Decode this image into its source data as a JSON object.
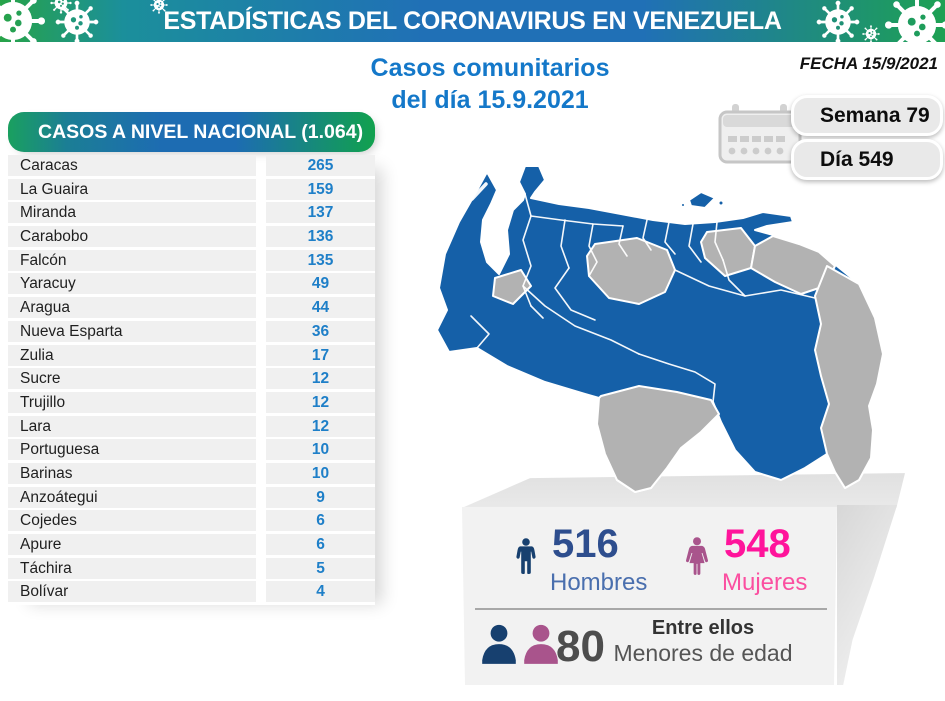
{
  "banner": {
    "title": "ESTADÍSTICAS DEL CORONAVIRUS EN VENEZUELA"
  },
  "header": {
    "date_label": "FECHA 15/9/2021",
    "title_line1": "Casos comunitarios",
    "title_line2": "del día 15.9.2021",
    "week_badge": "Semana 79",
    "day_badge": "Día 549"
  },
  "table": {
    "header": "CASOS A NIVEL NACIONAL (1.064)",
    "rows": [
      {
        "state": "Caracas",
        "value": "265"
      },
      {
        "state": "La Guaira",
        "value": "159"
      },
      {
        "state": "Miranda",
        "value": "137"
      },
      {
        "state": "Carabobo",
        "value": "136"
      },
      {
        "state": "Falcón",
        "value": "135"
      },
      {
        "state": "Yaracuy",
        "value": "49"
      },
      {
        "state": "Aragua",
        "value": "44"
      },
      {
        "state": "Nueva Esparta",
        "value": "36"
      },
      {
        "state": "Zulia",
        "value": "17"
      },
      {
        "state": "Sucre",
        "value": "12"
      },
      {
        "state": "Trujillo",
        "value": "12"
      },
      {
        "state": "Lara",
        "value": "12"
      },
      {
        "state": "Portuguesa",
        "value": "10"
      },
      {
        "state": "Barinas",
        "value": "10"
      },
      {
        "state": "Anzoátegui",
        "value": "9"
      },
      {
        "state": "Cojedes",
        "value": "6"
      },
      {
        "state": "Apure",
        "value": "6"
      },
      {
        "state": "Táchira",
        "value": "5"
      },
      {
        "state": "Bolívar",
        "value": "4"
      }
    ]
  },
  "stats": {
    "men": {
      "value": "516",
      "label": "Hombres"
    },
    "women": {
      "value": "548",
      "label": "Mujeres"
    },
    "minors": {
      "value": "80",
      "line1": "Entre ellos",
      "line2": "Menores de edad"
    }
  },
  "colors": {
    "accent_blue": "#1478c9",
    "table_value_blue": "#1e7fc8",
    "map_blue": "#1560a8",
    "map_gray": "#b2b2b2",
    "men_icon": "#17406f",
    "men_number": "#2e4e8e",
    "men_label": "#4a6fae",
    "women_icon": "#a9548c",
    "women_number": "#ff149b",
    "women_label": "#fb4fa0",
    "minors_number": "#4d4d4d"
  },
  "chart_data": {
    "type": "table",
    "title": "CASOS A NIVEL NACIONAL (1.064)",
    "subtitle": "Casos comunitarios del día 15.9.2021",
    "date": "15/9/2021",
    "week": 79,
    "day": 549,
    "total_cases": 1064,
    "categories": [
      "Caracas",
      "La Guaira",
      "Miranda",
      "Carabobo",
      "Falcón",
      "Yaracuy",
      "Aragua",
      "Nueva Esparta",
      "Zulia",
      "Sucre",
      "Trujillo",
      "Lara",
      "Portuguesa",
      "Barinas",
      "Anzoátegui",
      "Cojedes",
      "Apure",
      "Táchira",
      "Bolívar"
    ],
    "values": [
      265,
      159,
      137,
      136,
      135,
      49,
      44,
      36,
      17,
      12,
      12,
      12,
      10,
      10,
      9,
      6,
      6,
      5,
      4
    ],
    "demographics": {
      "hombres": 516,
      "mujeres": 548,
      "menores_de_edad": 80
    },
    "map_highlight": "states with cases shown blue, states without shown gray"
  }
}
